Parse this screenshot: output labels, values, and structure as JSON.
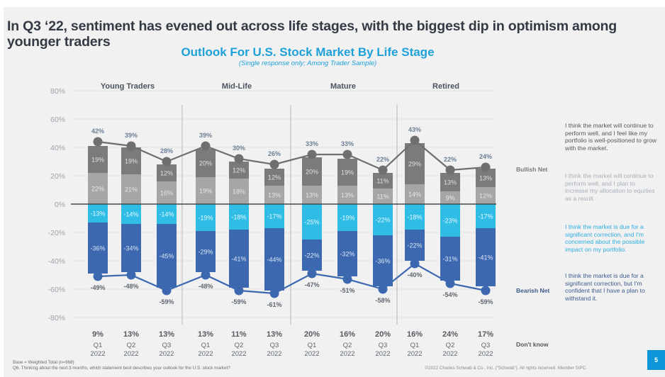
{
  "headline": "In Q3 ‘22, sentiment has evened out across life stages, with the biggest dip in optimism among younger traders",
  "page_number": "5",
  "footnotes": {
    "base": "Base = Weighted Total (n=968)",
    "question": "Q6. Thinking about the next 3 months, which statement  best describes your outlook for the U.S. stock market?",
    "copyright": "©2022  Charles Schwab  & Co., Inc. (\"Schwab\"). All rights reserved. Member SIPC."
  },
  "legend": {
    "bullish_net_label": "Bullish Net",
    "bearish_net_label": "Bearish Net",
    "dont_know_label": "Don't know",
    "statements": [
      {
        "key": "bull_strong",
        "text": "I think the market will continue to perform well, and I feel like my portfolio is well-positioned to grow with the market.",
        "color": "#555a60"
      },
      {
        "key": "bull_plan",
        "text": "I think the market will continue to perform well, and I plan to increase my allocation to equities as a result.",
        "color": "#a8b0bb"
      },
      {
        "key": "bear_concerned",
        "text": "I think the market is due for a significant correction, and I'm concerned about the possible impact on my portfolio.",
        "color": "#2eaee2"
      },
      {
        "key": "bear_confident",
        "text": "I think the market is due for a significant correction, but I'm confident that I have a plan to withstand it.",
        "color": "#3c5c8c"
      }
    ]
  },
  "colors": {
    "bull_strong": "#7b7b7b",
    "bull_plan": "#a6a6a6",
    "bear_concerned": "#2fbde6",
    "bear_confident": "#3c68b0",
    "bullish_line": "#6f6f6f",
    "bearish_line": "#3c68b0",
    "title_blue": "#1ea1d9"
  },
  "chart_data": {
    "type": "bar",
    "subtype": "stacked diverging bar with net lines",
    "title": "Outlook For U.S. Stock Market By Life Stage",
    "subtitle": "(Single response only; Among Trader Sample)",
    "ylabel": "",
    "xlabel": "",
    "ylim": [
      -80,
      80
    ],
    "yticks": [
      80,
      60,
      40,
      20,
      0,
      -20,
      -40,
      -60,
      -80
    ],
    "ytick_labels": [
      "80%",
      "60%",
      "40%",
      "20%",
      "0%",
      "-20%",
      "-40%",
      "-60%",
      "-80%"
    ],
    "grid": true,
    "legend_position": "right",
    "groups": [
      "Young Traders",
      "Mid-Life",
      "Mature",
      "Retired"
    ],
    "categories": [
      {
        "group": "Young Traders",
        "quarter": "Q1",
        "year": "2022"
      },
      {
        "group": "Young Traders",
        "quarter": "Q2",
        "year": "2022"
      },
      {
        "group": "Young Traders",
        "quarter": "Q3",
        "year": "2022"
      },
      {
        "group": "Mid-Life",
        "quarter": "Q1",
        "year": "2022"
      },
      {
        "group": "Mid-Life",
        "quarter": "Q2",
        "year": "2022"
      },
      {
        "group": "Mid-Life",
        "quarter": "Q3",
        "year": "2022"
      },
      {
        "group": "Mature",
        "quarter": "Q1",
        "year": "2022"
      },
      {
        "group": "Mature",
        "quarter": "Q2",
        "year": "2022"
      },
      {
        "group": "Mature",
        "quarter": "Q3",
        "year": "2022"
      },
      {
        "group": "Retired",
        "quarter": "Q1",
        "year": "2022"
      },
      {
        "group": "Retired",
        "quarter": "Q2",
        "year": "2022"
      },
      {
        "group": "Retired",
        "quarter": "Q3",
        "year": "2022"
      }
    ],
    "series": [
      {
        "name": "Bullish – portfolio well-positioned",
        "key": "bull_strong",
        "values": [
          19,
          19,
          12,
          20,
          12,
          12,
          20,
          19,
          11,
          29,
          13,
          13
        ]
      },
      {
        "name": "Bullish – plan to increase allocation",
        "key": "bull_plan",
        "values": [
          22,
          21,
          16,
          19,
          18,
          13,
          13,
          13,
          11,
          14,
          9,
          12
        ]
      },
      {
        "name": "Bearish – concerned about impact",
        "key": "bear_concerned",
        "values": [
          -13,
          -14,
          -14,
          -19,
          -18,
          -17,
          -25,
          -19,
          -22,
          -18,
          -23,
          -17
        ]
      },
      {
        "name": "Bearish – confident to withstand",
        "key": "bear_confident",
        "values": [
          -36,
          -34,
          -45,
          -29,
          -41,
          -44,
          -22,
          -32,
          -36,
          -22,
          -31,
          -41
        ]
      },
      {
        "name": "Bullish Net",
        "key": "bullish_net",
        "type": "line",
        "values": [
          42,
          39,
          28,
          39,
          30,
          26,
          33,
          33,
          22,
          43,
          22,
          24
        ]
      },
      {
        "name": "Bearish Net",
        "key": "bearish_net",
        "type": "line",
        "values": [
          -49,
          -48,
          -59,
          -48,
          -59,
          -61,
          -47,
          -51,
          -58,
          -40,
          -54,
          -59
        ]
      },
      {
        "name": "Don't know",
        "key": "dont_know",
        "type": "table",
        "values": [
          9,
          13,
          13,
          13,
          11,
          13,
          20,
          16,
          20,
          16,
          24,
          17
        ]
      }
    ]
  }
}
